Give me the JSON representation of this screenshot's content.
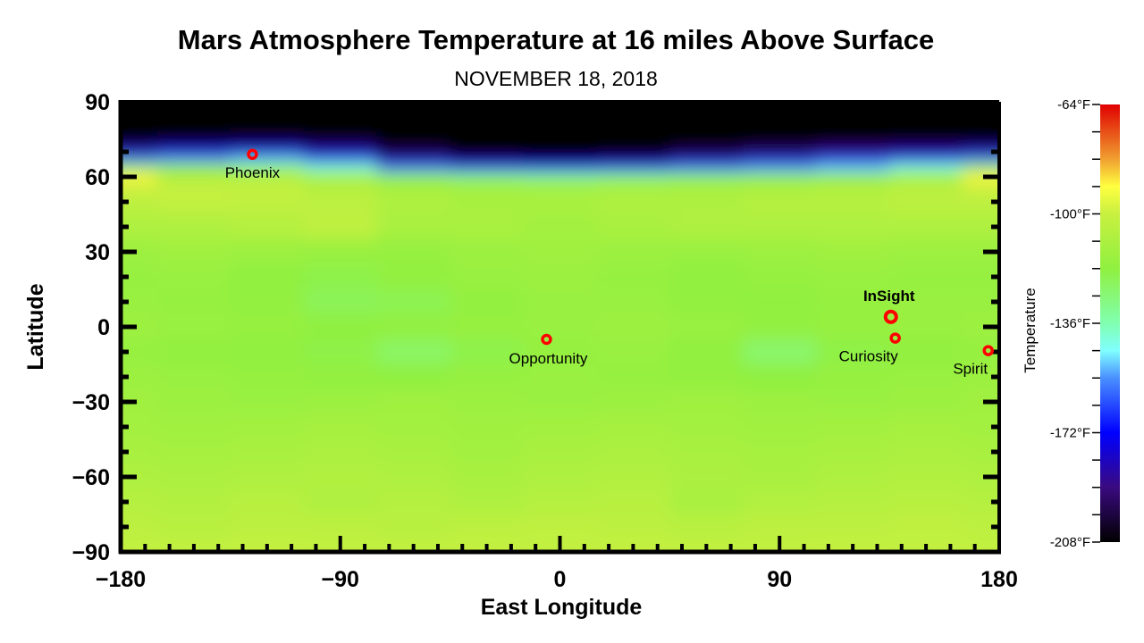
{
  "chart_data": {
    "type": "heatmap",
    "title": "Mars Atmosphere Temperature at 16 miles Above Surface",
    "subtitle": "NOVEMBER 18, 2018",
    "xlabel": "East Longitude",
    "ylabel": "Latitude",
    "xlim": [
      -180,
      180
    ],
    "ylim": [
      -90,
      90
    ],
    "xticks": [
      -180,
      -90,
      0,
      90,
      180
    ],
    "xtick_labels": [
      "−180",
      "−90",
      "0",
      "90",
      "180"
    ],
    "yticks": [
      90,
      60,
      30,
      0,
      -30,
      -60,
      -90
    ],
    "ytick_labels": [
      "90",
      "60",
      "30",
      "0",
      "−30",
      "−60",
      "−90"
    ],
    "colorbar": {
      "label": "Temperature",
      "range": [
        -208,
        -64
      ],
      "unit": "°F",
      "ticks": [
        -64,
        -100,
        -136,
        -172,
        -208
      ],
      "tick_labels": [
        "-64°F",
        "-100°F",
        "-136°F",
        "-172°F",
        "-208°F"
      ],
      "colormap": [
        [
          -208,
          "#000000"
        ],
        [
          -190,
          "#3a0a80"
        ],
        [
          -172,
          "#0000ff"
        ],
        [
          -154,
          "#4a90ff"
        ],
        [
          -145,
          "#80ffff"
        ],
        [
          -136,
          "#80ffb0"
        ],
        [
          -118,
          "#90f040"
        ],
        [
          -100,
          "#c8f040"
        ],
        [
          -91,
          "#ffff40"
        ],
        [
          -82,
          "#f0a030"
        ],
        [
          -64,
          "#e00000"
        ]
      ]
    },
    "lon": [
      -180,
      -150,
      -120,
      -90,
      -60,
      -30,
      0,
      30,
      60,
      90,
      120,
      150,
      180
    ],
    "lat": [
      90,
      80,
      75,
      70,
      67,
      64,
      60,
      55,
      50,
      40,
      30,
      20,
      10,
      0,
      -10,
      -20,
      -30,
      -40,
      -50,
      -60,
      -70,
      -80,
      -90
    ],
    "values": [
      [
        -208,
        -208,
        -208,
        -208,
        -208,
        -208,
        -208,
        -208,
        -208,
        -208,
        -208,
        -208,
        -208
      ],
      [
        -208,
        -208,
        -208,
        -208,
        -208,
        -208,
        -208,
        -208,
        -208,
        -208,
        -208,
        -208,
        -208
      ],
      [
        -206,
        -204,
        -202,
        -205,
        -208,
        -208,
        -208,
        -208,
        -208,
        -208,
        -208,
        -207,
        -206
      ],
      [
        -185,
        -180,
        -178,
        -185,
        -200,
        -208,
        -208,
        -206,
        -200,
        -195,
        -190,
        -188,
        -185
      ],
      [
        -160,
        -155,
        -150,
        -165,
        -185,
        -195,
        -200,
        -195,
        -185,
        -180,
        -175,
        -170,
        -160
      ],
      [
        -122,
        -118,
        -125,
        -140,
        -160,
        -170,
        -172,
        -168,
        -160,
        -155,
        -150,
        -140,
        -122
      ],
      [
        -90,
        -108,
        -106,
        -112,
        -120,
        -125,
        -128,
        -125,
        -122,
        -120,
        -118,
        -112,
        -90
      ],
      [
        -100,
        -100,
        -101,
        -105,
        -110,
        -112,
        -112,
        -110,
        -110,
        -108,
        -106,
        -104,
        -100
      ],
      [
        -104,
        -102,
        -103,
        -104,
        -108,
        -110,
        -110,
        -108,
        -108,
        -106,
        -106,
        -104,
        -104
      ],
      [
        -108,
        -108,
        -106,
        -103,
        -110,
        -110,
        -112,
        -110,
        -108,
        -108,
        -108,
        -108,
        -108
      ],
      [
        -114,
        -113,
        -114,
        -115,
        -116,
        -114,
        -113,
        -114,
        -115,
        -114,
        -113,
        -114,
        -114
      ],
      [
        -116,
        -115,
        -118,
        -120,
        -117,
        -115,
        -114,
        -116,
        -118,
        -116,
        -115,
        -116,
        -116
      ],
      [
        -115,
        -116,
        -117,
        -122,
        -121,
        -117,
        -115,
        -115,
        -117,
        -118,
        -116,
        -115,
        -115
      ],
      [
        -114,
        -115,
        -116,
        -118,
        -117,
        -116,
        -115,
        -114,
        -115,
        -117,
        -116,
        -115,
        -114
      ],
      [
        -116,
        -117,
        -118,
        -119,
        -124,
        -120,
        -116,
        -115,
        -118,
        -125,
        -119,
        -117,
        -116
      ],
      [
        -114,
        -115,
        -116,
        -117,
        -118,
        -116,
        -115,
        -116,
        -117,
        -118,
        -116,
        -115,
        -114
      ],
      [
        -113,
        -114,
        -115,
        -114,
        -113,
        -114,
        -115,
        -114,
        -113,
        -114,
        -115,
        -114,
        -113
      ],
      [
        -112,
        -113,
        -112,
        -111,
        -112,
        -113,
        -112,
        -111,
        -112,
        -113,
        -112,
        -111,
        -112
      ],
      [
        -110,
        -111,
        -110,
        -109,
        -110,
        -112,
        -110,
        -109,
        -110,
        -111,
        -110,
        -109,
        -110
      ],
      [
        -108,
        -109,
        -108,
        -107,
        -108,
        -110,
        -108,
        -107,
        -109,
        -110,
        -108,
        -107,
        -108
      ],
      [
        -106,
        -107,
        -105,
        -108,
        -106,
        -108,
        -106,
        -105,
        -110,
        -107,
        -106,
        -105,
        -106
      ],
      [
        -104,
        -105,
        -104,
        -104,
        -105,
        -104,
        -103,
        -104,
        -105,
        -104,
        -104,
        -103,
        -104
      ],
      [
        -102,
        -102,
        -101,
        -102,
        -102,
        -101,
        -102,
        -101,
        -102,
        -102,
        -101,
        -102,
        -102
      ]
    ],
    "annotations": [
      {
        "label": "Phoenix",
        "lon": -126,
        "lat": 69,
        "marker": "red-circle"
      },
      {
        "label": "Opportunity",
        "lon": -5.5,
        "lat": -5,
        "marker": "red-circle"
      },
      {
        "label": "InSight",
        "lon": 135.6,
        "lat": 4,
        "marker": "red-circle",
        "emphasis": "bold"
      },
      {
        "label": "Curiosity",
        "lon": 137.4,
        "lat": -4.5,
        "marker": "red-circle"
      },
      {
        "label": "Spirit",
        "lon": 175.5,
        "lat": -9.5,
        "marker": "red-circle"
      }
    ],
    "marker_color": "#ff0000"
  }
}
